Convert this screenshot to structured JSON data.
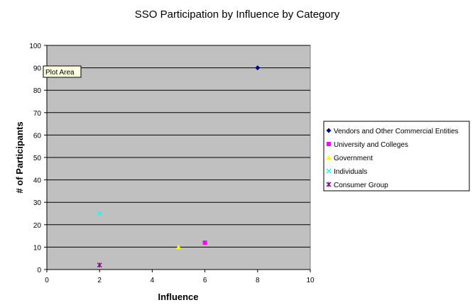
{
  "chart_data": {
    "type": "scatter",
    "title": "SSO Participation by Influence by Category",
    "xlabel": "Influence",
    "ylabel": "# of Participants",
    "xlim": [
      0,
      10
    ],
    "ylim": [
      0,
      100
    ],
    "x_ticks": [
      0,
      2,
      4,
      6,
      8,
      10
    ],
    "y_ticks": [
      0,
      10,
      20,
      30,
      40,
      50,
      60,
      70,
      80,
      90,
      100
    ],
    "grid": "horizontal",
    "plot_background": "#c0c0c0",
    "legend_position": "right",
    "series": [
      {
        "name": "Vendors and Other Commercial Entities",
        "color": "#000080",
        "marker": "diamond",
        "points": [
          {
            "x": 8,
            "y": 90
          }
        ]
      },
      {
        "name": "University and Colleges",
        "color": "#ff00ff",
        "marker": "square",
        "points": [
          {
            "x": 6,
            "y": 12
          }
        ]
      },
      {
        "name": "Government",
        "color": "#ffff00",
        "marker": "triangle",
        "points": [
          {
            "x": 5,
            "y": 10
          }
        ]
      },
      {
        "name": "Individuals",
        "color": "#00ffff",
        "marker": "x",
        "points": [
          {
            "x": 2,
            "y": 25
          }
        ]
      },
      {
        "name": "Consumer Group",
        "color": "#800080",
        "marker": "star",
        "points": [
          {
            "x": 2,
            "y": 2
          }
        ]
      }
    ]
  },
  "tooltip": {
    "text": "Plot Area"
  }
}
